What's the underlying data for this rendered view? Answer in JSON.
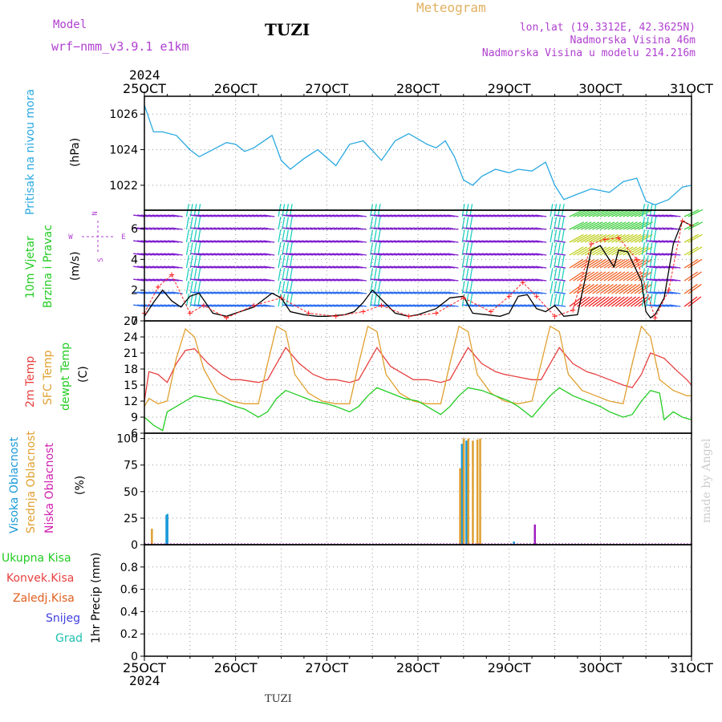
{
  "header": {
    "model_label": "Model",
    "model_name": "wrf−nmm_v3.9.1  e1km",
    "station": "TUZI",
    "meteogram_label": "Meteogram",
    "lonlat": "lon,lat (19.3312E, 42.3625N)",
    "elevation": "Nadmorska Visina 46m",
    "model_elevation": "Nadmorska Visina u modelu 214.216m",
    "credit": "made by Angel",
    "footer_station": "TUZI"
  },
  "time_axis": {
    "year": "2024",
    "ticks": [
      "25OCT",
      "26OCT",
      "27OCT",
      "28OCT",
      "29OCT",
      "30OCT",
      "31OCT"
    ],
    "range_days": [
      25,
      31
    ]
  },
  "panel_labels": {
    "pressure": "Pritisak na nivou mora",
    "pressure_unit": "(hPa)",
    "wind1": "10m Vjetar",
    "wind2": "Brzina i Pravac",
    "wind_unit": "(m/s)",
    "compass_n": "N",
    "compass_s": "S",
    "compass_e": "E",
    "compass_w": "W",
    "temp1": "2m Temp",
    "temp2": "SFC Temp",
    "temp3": "dewpt Temp",
    "temp_unit": "(C)",
    "cloud1": "Visoka Oblacnost",
    "cloud2": "Srednja Oblacnost",
    "cloud3": "Niska Oblacnost",
    "cloud_unit": "(%)",
    "precip_total": "Ukupna Kisa",
    "precip_conv": "Konvek.Kisa",
    "precip_frozen": "Zaledj.Kisa",
    "precip_snow": "Snijeg",
    "precip_hail": "Grad",
    "precip_unit": "1hr Precip (mm)"
  },
  "colors": {
    "pressure": "#2aa9e0",
    "temp2m": "#e84040",
    "sfc": "#e0a030",
    "dewpt": "#22cc22",
    "cloud_high": "#1a9ad8",
    "cloud_mid": "#e0a030",
    "cloud_low": "#a020c0",
    "wind_speed": "#000000",
    "wind_gust": "#ff2020",
    "purple_text": "#b040d0",
    "meteogram_text": "#e0b060",
    "grid": "#999999"
  },
  "chart_data": [
    {
      "type": "line",
      "panel": "pressure",
      "ylabel": "Pritisak na nivou mora (hPa)",
      "ylim": [
        1020.6,
        1027.0
      ],
      "yticks": [
        1022,
        1024,
        1026
      ],
      "series": [
        {
          "name": "Pritisak na nivou mora",
          "x": [
            25.0,
            25.1,
            25.2,
            25.35,
            25.5,
            25.6,
            25.75,
            25.9,
            26.0,
            26.1,
            26.2,
            26.4,
            26.5,
            26.6,
            26.75,
            26.9,
            27.1,
            27.25,
            27.4,
            27.6,
            27.75,
            27.9,
            28.1,
            28.2,
            28.3,
            28.4,
            28.5,
            28.6,
            28.7,
            28.85,
            29.0,
            29.1,
            29.25,
            29.4,
            29.5,
            29.6,
            29.75,
            29.9,
            30.1,
            30.25,
            30.4,
            30.5,
            30.6,
            30.75,
            30.9,
            31.0
          ],
          "values": [
            1026.5,
            1025.0,
            1025.0,
            1024.8,
            1024.0,
            1023.6,
            1024.0,
            1024.4,
            1024.3,
            1023.9,
            1024.1,
            1024.8,
            1023.4,
            1022.9,
            1023.5,
            1024.0,
            1023.1,
            1024.3,
            1024.5,
            1023.4,
            1024.5,
            1024.9,
            1024.3,
            1024.1,
            1024.5,
            1023.6,
            1022.3,
            1022.0,
            1022.5,
            1022.9,
            1022.7,
            1022.9,
            1022.8,
            1023.3,
            1022.0,
            1021.2,
            1021.5,
            1021.8,
            1021.6,
            1022.2,
            1022.4,
            1021.1,
            1020.9,
            1021.2,
            1021.9,
            1022.0
          ]
        }
      ]
    },
    {
      "type": "line",
      "panel": "wind",
      "ylabel": "10m Vjetar Brzina i Pravac (m/s)",
      "ylim": [
        0,
        7.2
      ],
      "yticks": [
        0,
        2,
        4,
        6
      ],
      "series": [
        {
          "name": "speed",
          "x": [
            25.0,
            25.1,
            25.2,
            25.3,
            25.4,
            25.5,
            25.6,
            25.75,
            25.9,
            26.0,
            26.2,
            26.4,
            26.5,
            26.6,
            26.75,
            26.9,
            27.0,
            27.2,
            27.3,
            27.4,
            27.5,
            27.6,
            27.75,
            27.9,
            28.0,
            28.2,
            28.35,
            28.5,
            28.6,
            28.75,
            28.9,
            29.0,
            29.1,
            29.2,
            29.3,
            29.4,
            29.5,
            29.6,
            29.75,
            29.9,
            30.0,
            30.15,
            30.2,
            30.3,
            30.45,
            30.5,
            30.55,
            30.6,
            30.7,
            30.8,
            30.9,
            31.0
          ],
          "values": [
            0.3,
            1.2,
            2.0,
            1.3,
            0.9,
            1.6,
            1.8,
            0.5,
            0.3,
            0.5,
            0.9,
            1.8,
            1.5,
            0.6,
            0.4,
            0.3,
            0.3,
            0.4,
            0.6,
            1.2,
            2.0,
            1.4,
            0.5,
            0.3,
            0.4,
            0.8,
            1.5,
            1.6,
            0.5,
            0.4,
            0.3,
            0.5,
            1.6,
            1.7,
            0.8,
            0.6,
            1.0,
            0.3,
            0.4,
            4.6,
            4.9,
            3.5,
            4.6,
            4.5,
            2.6,
            0.6,
            0.2,
            0.4,
            1.5,
            5.0,
            6.5,
            6.2
          ]
        },
        {
          "name": "gust",
          "x": [
            25.0,
            25.15,
            25.3,
            25.5,
            25.65,
            25.9,
            26.2,
            26.5,
            26.8,
            27.1,
            27.4,
            27.6,
            27.9,
            28.2,
            28.5,
            28.8,
            29.0,
            29.15,
            29.3,
            29.5,
            29.7,
            29.9,
            30.05,
            30.2,
            30.4,
            30.6,
            30.75,
            30.9,
            31.0
          ],
          "values": [
            0.5,
            2.2,
            3.0,
            0.5,
            1.0,
            0.2,
            1.0,
            1.5,
            0.5,
            0.3,
            0.6,
            1.0,
            0.3,
            0.5,
            1.5,
            0.6,
            1.6,
            2.5,
            1.6,
            0.3,
            0.7,
            5.0,
            5.3,
            5.4,
            4.0,
            0.2,
            2.0,
            6.5,
            6.2
          ]
        }
      ]
    },
    {
      "type": "line",
      "panel": "temperature",
      "ylabel": "Temp (C)",
      "ylim": [
        6,
        27
      ],
      "yticks": [
        6,
        9,
        12,
        15,
        18,
        21,
        24,
        27
      ],
      "series": [
        {
          "name": "2m Temp",
          "x": [
            25.0,
            25.05,
            25.15,
            25.25,
            25.35,
            25.45,
            25.55,
            25.7,
            25.85,
            25.95,
            26.05,
            26.25,
            26.35,
            26.45,
            26.55,
            26.7,
            26.85,
            27.0,
            27.1,
            27.25,
            27.35,
            27.45,
            27.55,
            27.7,
            27.85,
            27.95,
            28.1,
            28.25,
            28.35,
            28.45,
            28.55,
            28.7,
            28.85,
            28.95,
            29.1,
            29.25,
            29.35,
            29.45,
            29.55,
            29.7,
            29.85,
            29.95,
            30.1,
            30.25,
            30.35,
            30.45,
            30.55,
            30.7,
            30.85,
            30.95,
            31.0
          ],
          "values": [
            12,
            17.5,
            17,
            15.5,
            19,
            21.5,
            21.8,
            19,
            17,
            16,
            16,
            15.5,
            16,
            19,
            22,
            19,
            17,
            16,
            16,
            15.5,
            16,
            19,
            22,
            18.5,
            17,
            16,
            16,
            15.5,
            16,
            19,
            22,
            19,
            17.5,
            17,
            16.5,
            16,
            16,
            19,
            22,
            19,
            17.5,
            17,
            16,
            15,
            14.5,
            17,
            21,
            20,
            17.5,
            16,
            15
          ]
        },
        {
          "name": "SFC Temp",
          "x": [
            25.0,
            25.05,
            25.15,
            25.25,
            25.35,
            25.45,
            25.55,
            25.65,
            25.8,
            25.95,
            26.1,
            26.25,
            26.35,
            26.45,
            26.55,
            26.65,
            26.8,
            26.95,
            27.1,
            27.25,
            27.35,
            27.45,
            27.55,
            27.65,
            27.8,
            27.95,
            28.1,
            28.25,
            28.35,
            28.45,
            28.55,
            28.65,
            28.8,
            28.95,
            29.1,
            29.25,
            29.35,
            29.45,
            29.55,
            29.65,
            29.8,
            29.95,
            30.1,
            30.25,
            30.35,
            30.45,
            30.55,
            30.65,
            30.8,
            30.95,
            31.0
          ],
          "values": [
            11,
            12.5,
            11.5,
            12,
            20,
            25.5,
            24,
            18,
            13.5,
            12,
            11.5,
            11.5,
            19,
            26,
            25,
            17,
            13.5,
            12,
            11.5,
            11.5,
            19,
            26,
            25,
            17,
            13.5,
            12,
            11.5,
            11.5,
            19,
            26,
            25,
            17,
            13.5,
            12,
            11.5,
            12,
            19,
            26,
            25,
            17,
            14,
            13,
            12,
            11.5,
            19,
            26,
            24,
            16,
            14,
            13,
            13
          ]
        },
        {
          "name": "dewpt Temp",
          "x": [
            25.0,
            25.1,
            25.2,
            25.25,
            25.35,
            25.45,
            25.55,
            25.7,
            25.85,
            26.0,
            26.1,
            26.25,
            26.35,
            26.45,
            26.55,
            26.7,
            26.85,
            27.0,
            27.1,
            27.25,
            27.35,
            27.45,
            27.55,
            27.7,
            27.85,
            28.0,
            28.1,
            28.25,
            28.35,
            28.45,
            28.55,
            28.7,
            28.85,
            29.0,
            29.1,
            29.25,
            29.35,
            29.45,
            29.55,
            29.7,
            29.85,
            30.0,
            30.1,
            30.25,
            30.35,
            30.45,
            30.55,
            30.65,
            30.7,
            30.8,
            30.9,
            31.0
          ],
          "values": [
            9,
            7.5,
            6.5,
            10,
            11,
            12,
            13,
            12.5,
            12,
            11,
            10.5,
            9,
            10,
            12.5,
            14,
            13,
            12,
            11.5,
            11,
            10,
            11,
            13,
            14.5,
            13.5,
            12.5,
            12,
            11,
            9.5,
            11,
            13,
            14.5,
            14,
            13,
            12,
            11,
            9,
            11,
            13,
            14.5,
            13,
            12,
            11,
            10,
            9,
            9.5,
            12,
            14,
            13.5,
            8.5,
            10,
            9,
            8.5
          ]
        }
      ]
    },
    {
      "type": "bar",
      "panel": "cloud",
      "ylabel": "Oblacnost (%)",
      "ylim": [
        0,
        105
      ],
      "yticks": [
        0,
        25,
        50,
        75,
        100
      ],
      "series": [
        {
          "name": "Visoka Oblacnost",
          "x": [
            25.24,
            25.25,
            28.48,
            28.5,
            28.53,
            29.05
          ],
          "values": [
            28,
            29,
            95,
            100,
            98,
            3
          ]
        },
        {
          "name": "Srednja Oblacnost",
          "x": [
            25.08,
            28.46,
            28.5,
            28.55,
            28.6,
            28.65,
            28.68
          ],
          "values": [
            15,
            72,
            100,
            100,
            98,
            99,
            100
          ]
        },
        {
          "name": "Niska Oblacnost",
          "x": [
            29.28
          ],
          "values": [
            19
          ]
        }
      ]
    },
    {
      "type": "bar",
      "panel": "precip",
      "ylabel": "1hr Precip (mm)",
      "ylim": [
        0,
        1.0
      ],
      "yticks": [
        0,
        0.2,
        0.4,
        0.6,
        0.8
      ],
      "series": [
        {
          "name": "Ukupna Kisa",
          "x": [],
          "values": []
        }
      ]
    }
  ]
}
